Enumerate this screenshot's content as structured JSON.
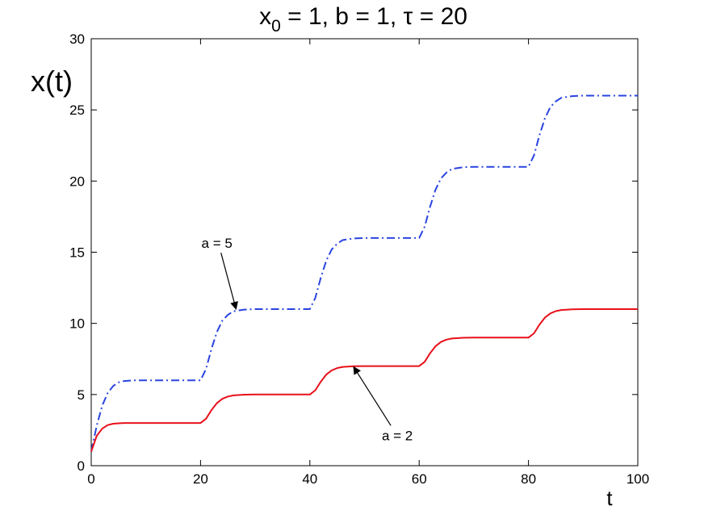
{
  "chart_data": {
    "type": "line",
    "title": {
      "x_label": "x",
      "x_subscript": "0",
      "rest": " = 1, b = 1, τ = 20"
    },
    "xlabel": "t",
    "ylabel": "x(t)",
    "xlim": [
      0,
      100
    ],
    "ylim": [
      0,
      30
    ],
    "x_ticks": [
      0,
      20,
      40,
      60,
      80,
      100
    ],
    "y_ticks": [
      0,
      5,
      10,
      15,
      20,
      25,
      30
    ],
    "grid": false,
    "series": [
      {
        "name": "a = 5",
        "color": "#2a44e0",
        "style": "dash-dot",
        "x": [
          0,
          1,
          2,
          3,
          4,
          5,
          6,
          8,
          10,
          15,
          20,
          21,
          22,
          23,
          24,
          25,
          26,
          28,
          30,
          35,
          40,
          41,
          42,
          43,
          44,
          45,
          46,
          48,
          50,
          55,
          60,
          61,
          62,
          63,
          64,
          65,
          66,
          68,
          70,
          75,
          80,
          81,
          82,
          83,
          84,
          85,
          86,
          88,
          90,
          95,
          100
        ],
        "y": [
          1,
          2.8,
          4.2,
          5.1,
          5.6,
          5.85,
          5.95,
          6,
          6,
          6,
          6,
          6.8,
          8.2,
          9.4,
          10.2,
          10.6,
          10.85,
          10.97,
          11,
          11,
          11,
          11.8,
          13.2,
          14.4,
          15.2,
          15.6,
          15.85,
          15.97,
          16,
          16,
          16,
          16.8,
          18.2,
          19.4,
          20.2,
          20.6,
          20.85,
          20.97,
          21,
          21,
          21,
          21.8,
          23.2,
          24.4,
          25.2,
          25.6,
          25.85,
          25.97,
          26,
          26,
          26
        ]
      },
      {
        "name": "a = 2",
        "color": "#e8101a",
        "style": "solid",
        "x": [
          0,
          1,
          2,
          3,
          4,
          5,
          6,
          8,
          10,
          15,
          20,
          21,
          22,
          23,
          24,
          25,
          26,
          28,
          30,
          35,
          40,
          41,
          42,
          43,
          44,
          45,
          46,
          48,
          50,
          55,
          60,
          61,
          62,
          63,
          64,
          65,
          66,
          68,
          70,
          75,
          80,
          81,
          82,
          83,
          84,
          85,
          86,
          88,
          90,
          95,
          100
        ],
        "y": [
          1,
          2.1,
          2.6,
          2.85,
          2.95,
          2.98,
          3,
          3,
          3,
          3,
          3,
          3.3,
          3.9,
          4.4,
          4.7,
          4.86,
          4.94,
          4.99,
          5,
          5,
          5,
          5.3,
          5.9,
          6.4,
          6.7,
          6.86,
          6.94,
          6.99,
          7,
          7,
          7,
          7.3,
          7.9,
          8.4,
          8.7,
          8.86,
          8.94,
          8.99,
          9,
          9,
          9,
          9.3,
          9.9,
          10.4,
          10.7,
          10.86,
          10.94,
          10.99,
          11,
          11,
          11
        ]
      }
    ],
    "annotations": [
      {
        "text": "a = 5",
        "text_at": [
          23,
          15.3
        ],
        "arrow_to": [
          26.5,
          11
        ]
      },
      {
        "text": "a = 2",
        "text_at": [
          56,
          1.8
        ],
        "arrow_to": [
          48,
          6.95
        ]
      }
    ]
  }
}
